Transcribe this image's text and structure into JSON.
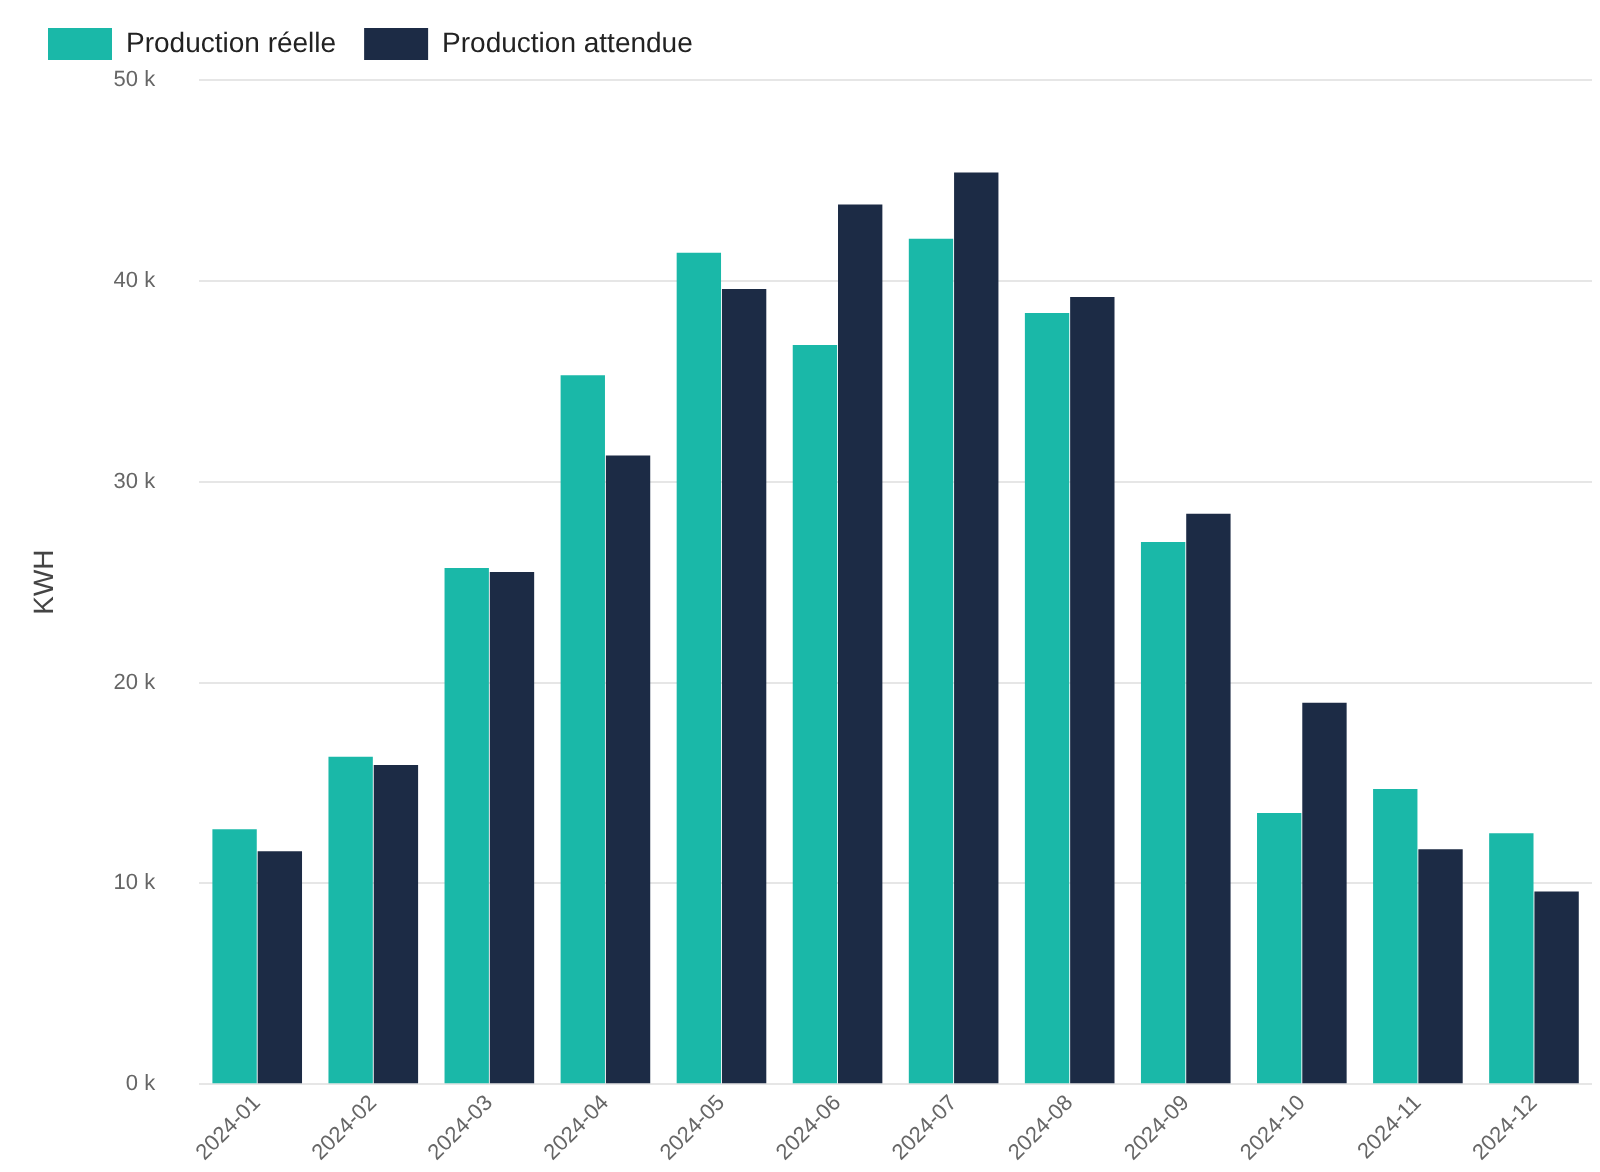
{
  "chart_data": {
    "type": "bar",
    "ylabel": "KWH",
    "categories": [
      "2024-01",
      "2024-02",
      "2024-03",
      "2024-04",
      "2024-05",
      "2024-06",
      "2024-07",
      "2024-08",
      "2024-09",
      "2024-10",
      "2024-11",
      "2024-12"
    ],
    "series": [
      {
        "name": "Production réelle",
        "color": "#1ab8a8",
        "values": [
          12.7,
          16.3,
          25.7,
          35.3,
          41.4,
          36.8,
          42.1,
          38.4,
          27.0,
          13.5,
          14.7,
          12.5
        ]
      },
      {
        "name": "Production attendue",
        "color": "#1c2b45",
        "values": [
          11.6,
          15.9,
          25.5,
          31.3,
          39.6,
          43.8,
          45.4,
          39.2,
          28.4,
          19.0,
          11.7,
          9.6
        ]
      }
    ],
    "ylim": [
      0,
      50
    ],
    "yticks": [
      {
        "value": 0,
        "label": "0 k"
      },
      {
        "value": 10,
        "label": "10 k"
      },
      {
        "value": 20,
        "label": "20 k"
      },
      {
        "value": 30,
        "label": "30 k"
      },
      {
        "value": 40,
        "label": "40 k"
      },
      {
        "value": 50,
        "label": "50 k"
      }
    ],
    "grid": "y",
    "legend": "top left"
  }
}
